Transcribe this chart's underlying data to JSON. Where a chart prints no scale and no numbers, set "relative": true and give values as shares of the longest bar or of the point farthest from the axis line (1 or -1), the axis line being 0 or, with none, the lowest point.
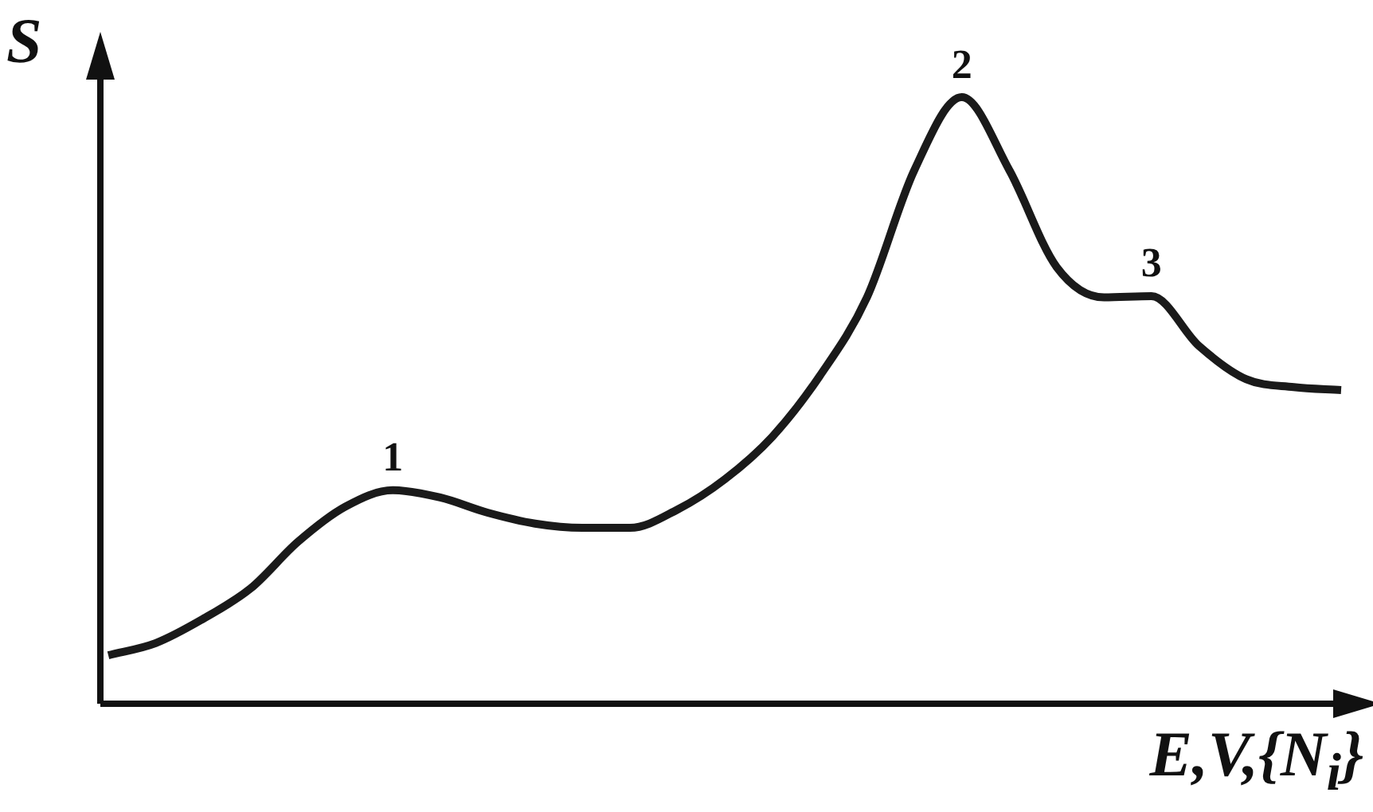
{
  "chart_data": {
    "type": "line",
    "relative": true,
    "xlabel": "E,V,{N$_{i}$}",
    "ylabel": "S",
    "color": "#1a1a1a",
    "categories": [
      null,
      null,
      null,
      null,
      null,
      null,
      null,
      null,
      null,
      null,
      null,
      null,
      null,
      null,
      null,
      null,
      null,
      null,
      null,
      null,
      null,
      null,
      null,
      null,
      null,
      null,
      null
    ],
    "values": [
      0.08,
      0.1,
      0.14,
      0.19,
      0.267,
      0.325,
      0.352,
      0.34,
      0.315,
      0.297,
      0.29,
      0.29,
      0.32,
      0.37,
      0.44,
      0.54,
      0.67,
      0.88,
      1.0,
      0.88,
      0.72,
      0.67,
      0.672,
      0.59,
      0.535,
      0.522,
      0.517
    ],
    "annotations": [
      "1",
      "2",
      "3"
    ]
  }
}
